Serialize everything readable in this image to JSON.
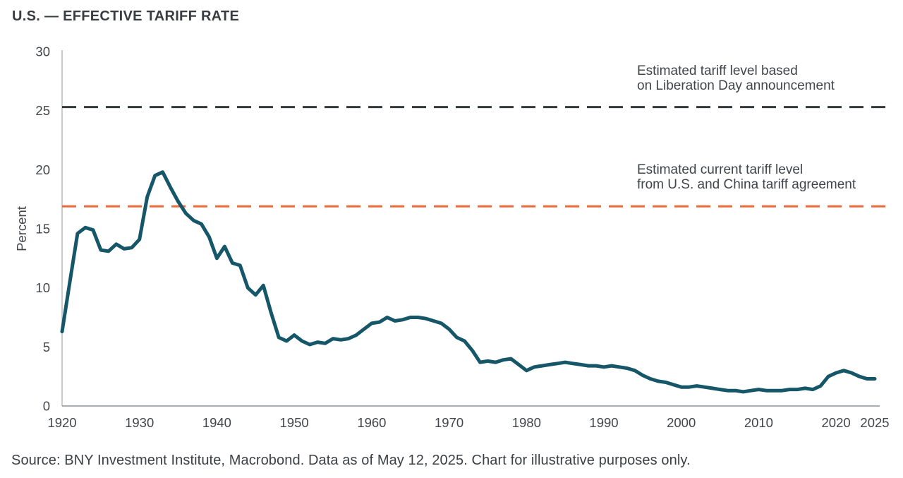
{
  "header": {
    "title": "U.S. — EFFECTIVE TARIFF RATE"
  },
  "annotations": {
    "liberation_day": {
      "line1": "Estimated tariff level based",
      "line2": "on Liberation Day announcement"
    },
    "current_agreement": {
      "line1": "Estimated current tariff level",
      "line2": "from U.S. and China tariff agreement"
    }
  },
  "footer": {
    "source": "Source: BNY Investment Institute, Macrobond. Data as of May 12, 2025. Chart for illustrative purposes only."
  },
  "colors": {
    "series_teal": "#155669",
    "liberation_line_dark": "#33383b",
    "current_line_orange": "#ed6b3b",
    "axis_gray": "#9ca1a5",
    "text_dark": "#3c4044"
  },
  "chart_data": {
    "type": "line",
    "title": "U.S. — EFFECTIVE TARIFF RATE",
    "xlabel": "",
    "ylabel": "Percent",
    "ylim": [
      0,
      30
    ],
    "xlim": [
      1920,
      2025
    ],
    "yticks": [
      0,
      5,
      10,
      15,
      20,
      25,
      30
    ],
    "xticks": [
      1920,
      1930,
      1940,
      1950,
      1960,
      1970,
      1980,
      1990,
      2000,
      2010,
      2020,
      2025
    ],
    "grid": false,
    "legend_position": "none",
    "series": [
      {
        "name": "U.S. effective tariff rate",
        "color": "#155669",
        "x": [
          1920,
          1921,
          1922,
          1923,
          1924,
          1925,
          1926,
          1927,
          1928,
          1929,
          1930,
          1931,
          1932,
          1933,
          1934,
          1935,
          1936,
          1937,
          1938,
          1939,
          1940,
          1941,
          1942,
          1943,
          1944,
          1945,
          1946,
          1947,
          1948,
          1949,
          1950,
          1951,
          1952,
          1953,
          1954,
          1955,
          1956,
          1957,
          1958,
          1959,
          1960,
          1961,
          1962,
          1963,
          1964,
          1965,
          1966,
          1967,
          1968,
          1969,
          1970,
          1971,
          1972,
          1973,
          1974,
          1975,
          1976,
          1977,
          1978,
          1979,
          1980,
          1981,
          1982,
          1983,
          1984,
          1985,
          1986,
          1987,
          1988,
          1989,
          1990,
          1991,
          1992,
          1993,
          1994,
          1995,
          1996,
          1997,
          1998,
          1999,
          2000,
          2001,
          2002,
          2003,
          2004,
          2005,
          2006,
          2007,
          2008,
          2009,
          2010,
          2011,
          2012,
          2013,
          2014,
          2015,
          2016,
          2017,
          2018,
          2019,
          2020,
          2021,
          2022,
          2023,
          2024,
          2025
        ],
        "values": [
          6.3,
          10.5,
          14.6,
          15.1,
          14.9,
          13.2,
          13.1,
          13.7,
          13.3,
          13.4,
          14.1,
          17.7,
          19.5,
          19.8,
          18.5,
          17.3,
          16.3,
          15.7,
          15.4,
          14.3,
          12.5,
          13.5,
          12.1,
          11.9,
          10.0,
          9.4,
          10.2,
          7.9,
          5.8,
          5.5,
          6.0,
          5.5,
          5.2,
          5.4,
          5.3,
          5.7,
          5.6,
          5.7,
          6.0,
          6.5,
          7.0,
          7.1,
          7.5,
          7.2,
          7.3,
          7.5,
          7.5,
          7.4,
          7.2,
          7.0,
          6.5,
          5.8,
          5.5,
          4.7,
          3.7,
          3.8,
          3.7,
          3.9,
          4.0,
          3.5,
          3.0,
          3.3,
          3.4,
          3.5,
          3.6,
          3.7,
          3.6,
          3.5,
          3.4,
          3.4,
          3.3,
          3.4,
          3.3,
          3.2,
          3.0,
          2.6,
          2.3,
          2.1,
          2.0,
          1.8,
          1.6,
          1.6,
          1.7,
          1.6,
          1.5,
          1.4,
          1.3,
          1.3,
          1.2,
          1.3,
          1.4,
          1.3,
          1.3,
          1.3,
          1.4,
          1.4,
          1.5,
          1.4,
          1.7,
          2.5,
          2.8,
          3.0,
          2.8,
          2.5,
          2.3,
          2.3
        ]
      }
    ],
    "reference_lines": [
      {
        "id": "liberation-day-line",
        "label": "Estimated tariff level based on Liberation Day announcement",
        "value": 25.3,
        "color": "#33383b",
        "style": "dashed"
      },
      {
        "id": "current-tariff-line",
        "label": "Estimated current tariff level from U.S. and China tariff agreement",
        "value": 16.9,
        "color": "#ed6b3b",
        "style": "dashed"
      }
    ]
  }
}
